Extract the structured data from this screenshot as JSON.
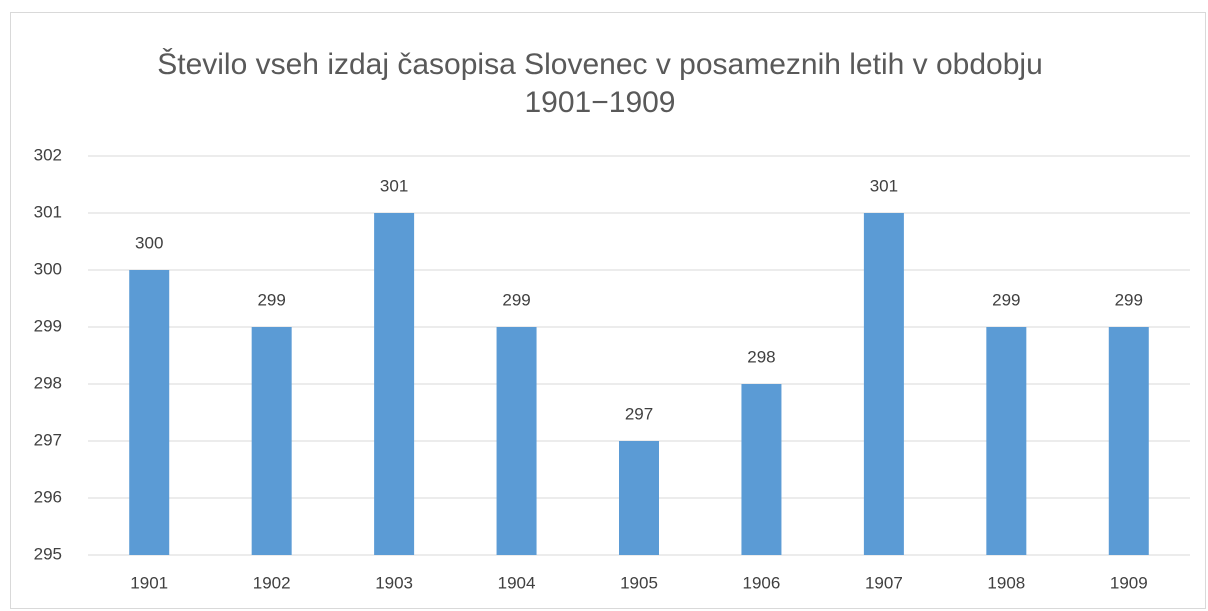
{
  "chart_data": {
    "type": "bar",
    "title": "Število vseh izdaj časopisa Slovenec v posameznih letih v obdobju 1901−1909",
    "categories": [
      "1901",
      "1902",
      "1903",
      "1904",
      "1905",
      "1906",
      "1907",
      "1908",
      "1909"
    ],
    "values": [
      300,
      299,
      301,
      299,
      297,
      298,
      301,
      299,
      299
    ],
    "color": "#5b9bd5",
    "ylim": [
      295,
      302
    ],
    "yticks": [
      295,
      296,
      297,
      298,
      299,
      300,
      301,
      302
    ],
    "grid": true,
    "data_labels": true
  }
}
